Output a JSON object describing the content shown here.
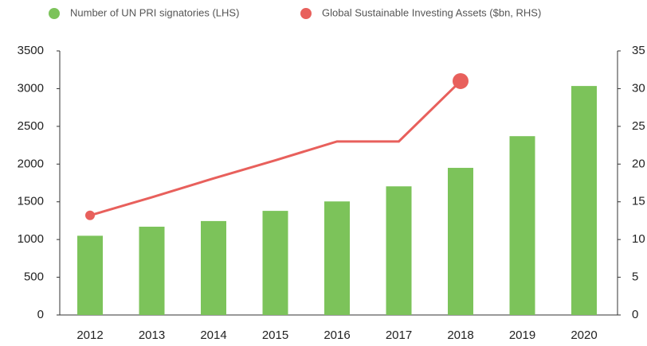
{
  "chart_data": {
    "type": "bar",
    "categories": [
      "2012",
      "2013",
      "2014",
      "2015",
      "2016",
      "2017",
      "2018",
      "2019",
      "2020"
    ],
    "series": [
      {
        "name": "Number of UN PRI signatories (LHS)",
        "color": "#7cc35a",
        "values": [
          1050,
          1170,
          1245,
          1380,
          1505,
          1705,
          1950,
          2370,
          3035
        ]
      },
      {
        "name": "Global Sustainable Investing Assets ($bn, RHS)",
        "color": "#e8605c",
        "axis": "y2",
        "type": "line",
        "values": [
          13.2,
          15.6,
          18.1,
          20.5,
          23.0,
          23.0,
          31.0,
          null,
          null
        ]
      }
    ],
    "ylim": [
      0,
      3500
    ],
    "yticks": [
      0,
      500,
      1000,
      1500,
      2000,
      2500,
      3000,
      3500
    ],
    "y2lim": [
      0,
      35
    ],
    "y2ticks": [
      0,
      5,
      10,
      15,
      20,
      25,
      30,
      35
    ],
    "legend": "top"
  }
}
